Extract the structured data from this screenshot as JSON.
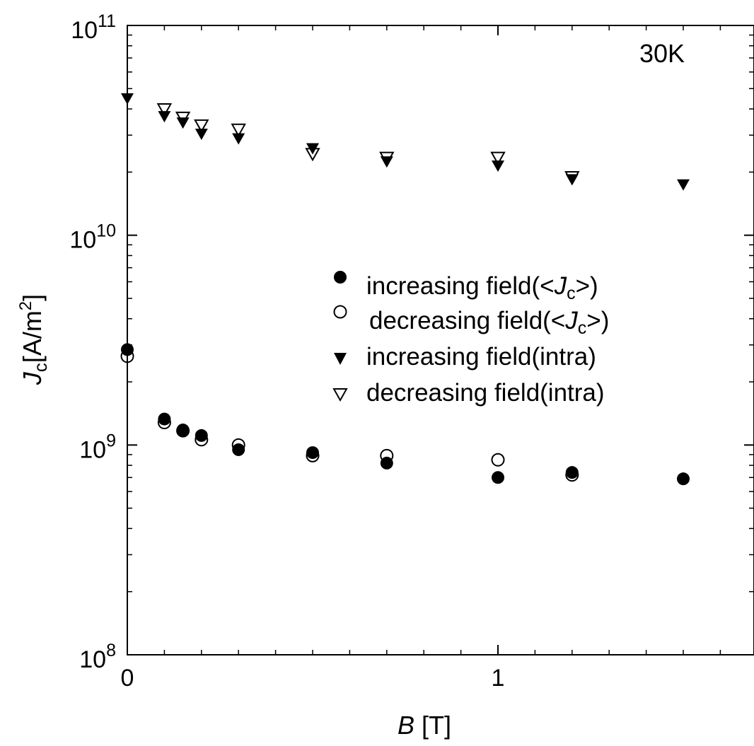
{
  "chart_data": {
    "type": "scatter",
    "title": "",
    "annotation": "30K",
    "xlabel": {
      "italic": "B",
      "rest": " [T]"
    },
    "ylabel": {
      "main": "J",
      "sub": "c",
      "mid": "[A/m",
      "sup": "2",
      "end": "]"
    },
    "x_scale": "linear",
    "y_scale": "log",
    "xlim": [
      0,
      1.7
    ],
    "ylim": [
      100000000,
      100000000000
    ],
    "x_ticks": [
      {
        "value": 0,
        "label": "0"
      },
      {
        "value": 1,
        "label": "1"
      }
    ],
    "y_ticks": [
      {
        "value": 100000000,
        "base": "10",
        "exp": "8"
      },
      {
        "value": 1000000000,
        "base": "10",
        "exp": "9"
      },
      {
        "value": 10000000000,
        "base": "10",
        "exp": "10"
      },
      {
        "value": 100000000000,
        "base": "10",
        "exp": "11"
      }
    ],
    "legend": {
      "position": "center-right",
      "entries": [
        {
          "label_pre": "increasing field(<",
          "label_main": "J",
          "label_sub": "c",
          "label_post": ">)"
        },
        {
          "label_pre": "decreasing field(<",
          "label_main": "J",
          "label_sub": "c",
          "label_post": ">)"
        },
        {
          "label_pre": "increasing field(intra)",
          "label_main": "",
          "label_sub": "",
          "label_post": ""
        },
        {
          "label_pre": "decreasing field(intra)",
          "label_main": "",
          "label_sub": "",
          "label_post": ""
        }
      ]
    },
    "series": [
      {
        "marker": "filled-circle",
        "points": [
          [
            0.0,
            2850000000.0
          ],
          [
            0.1,
            1330000000.0
          ],
          [
            0.15,
            1180000000.0
          ],
          [
            0.2,
            1110000000.0
          ],
          [
            0.3,
            950000000.0
          ],
          [
            0.5,
            920000000.0
          ],
          [
            0.7,
            820000000.0
          ],
          [
            1.0,
            700000000.0
          ],
          [
            1.2,
            740000000.0
          ],
          [
            1.5,
            690000000.0
          ]
        ]
      },
      {
        "marker": "open-circle",
        "points": [
          [
            0.0,
            2650000000.0
          ],
          [
            0.1,
            1280000000.0
          ],
          [
            0.15,
            1170000000.0
          ],
          [
            0.2,
            1060000000.0
          ],
          [
            0.3,
            1000000000.0
          ],
          [
            0.5,
            890000000.0
          ],
          [
            0.7,
            890000000.0
          ],
          [
            1.0,
            850000000.0
          ],
          [
            1.2,
            720000000.0
          ]
        ]
      },
      {
        "marker": "filled-triangle-down",
        "points": [
          [
            0.0,
            45000000000.0
          ],
          [
            0.1,
            37000000000.0
          ],
          [
            0.15,
            34500000000.0
          ],
          [
            0.2,
            30500000000.0
          ],
          [
            0.3,
            29000000000.0
          ],
          [
            0.5,
            26000000000.0
          ],
          [
            0.7,
            22500000000.0
          ],
          [
            1.0,
            21500000000.0
          ],
          [
            1.2,
            18500000000.0
          ],
          [
            1.5,
            17500000000.0
          ]
        ]
      },
      {
        "marker": "open-triangle-down",
        "points": [
          [
            0.1,
            40000000000.0
          ],
          [
            0.15,
            36500000000.0
          ],
          [
            0.2,
            33500000000.0
          ],
          [
            0.3,
            32000000000.0
          ],
          [
            0.5,
            24500000000.0
          ],
          [
            0.7,
            23500000000.0
          ],
          [
            1.0,
            23500000000.0
          ],
          [
            1.2,
            19000000000.0
          ]
        ]
      }
    ]
  }
}
